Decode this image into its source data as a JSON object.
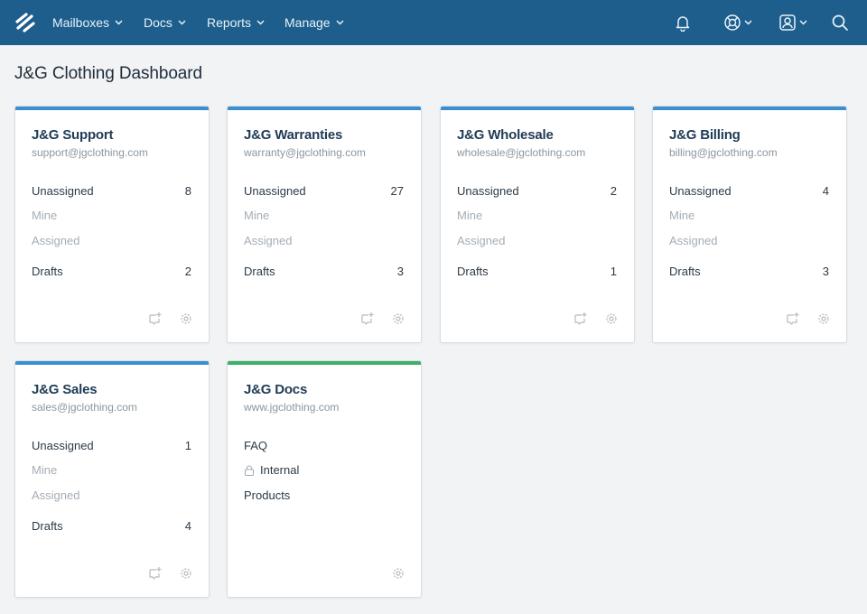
{
  "nav": {
    "items": [
      {
        "label": "Mailboxes"
      },
      {
        "label": "Docs"
      },
      {
        "label": "Reports"
      },
      {
        "label": "Manage"
      }
    ]
  },
  "page": {
    "title": "J&G Clothing Dashboard"
  },
  "colors": {
    "nav_bg": "#1e5e8c",
    "mailbox_accent": "#3a8fd0",
    "docs_accent": "#3fae6a"
  },
  "mailboxes": [
    {
      "name": "J&G Support",
      "email": "support@jgclothing.com",
      "unassigned_label": "Unassigned",
      "unassigned": "8",
      "mine_label": "Mine",
      "assigned_label": "Assigned",
      "drafts_label": "Drafts",
      "drafts": "2"
    },
    {
      "name": "J&G Warranties",
      "email": "warranty@jgclothing.com",
      "unassigned_label": "Unassigned",
      "unassigned": "27",
      "mine_label": "Mine",
      "assigned_label": "Assigned",
      "drafts_label": "Drafts",
      "drafts": "3"
    },
    {
      "name": "J&G Wholesale",
      "email": "wholesale@jgclothing.com",
      "unassigned_label": "Unassigned",
      "unassigned": "2",
      "mine_label": "Mine",
      "assigned_label": "Assigned",
      "drafts_label": "Drafts",
      "drafts": "1"
    },
    {
      "name": "J&G Billing",
      "email": "billing@jgclothing.com",
      "unassigned_label": "Unassigned",
      "unassigned": "4",
      "mine_label": "Mine",
      "assigned_label": "Assigned",
      "drafts_label": "Drafts",
      "drafts": "3"
    },
    {
      "name": "J&G Sales",
      "email": "sales@jgclothing.com",
      "unassigned_label": "Unassigned",
      "unassigned": "1",
      "mine_label": "Mine",
      "assigned_label": "Assigned",
      "drafts_label": "Drafts",
      "drafts": "4"
    }
  ],
  "docs": {
    "name": "J&G Docs",
    "url": "www.jgclothing.com",
    "collections": [
      "FAQ",
      "Internal",
      "Products"
    ]
  },
  "icons": {
    "logo": "helpscout-logo-icon",
    "notifications": "bell-icon",
    "help": "lifebuoy-icon",
    "profile": "user-icon",
    "search": "search-icon",
    "new_conversation": "new-conversation-icon",
    "settings": "gear-icon",
    "lock": "lock-icon"
  }
}
